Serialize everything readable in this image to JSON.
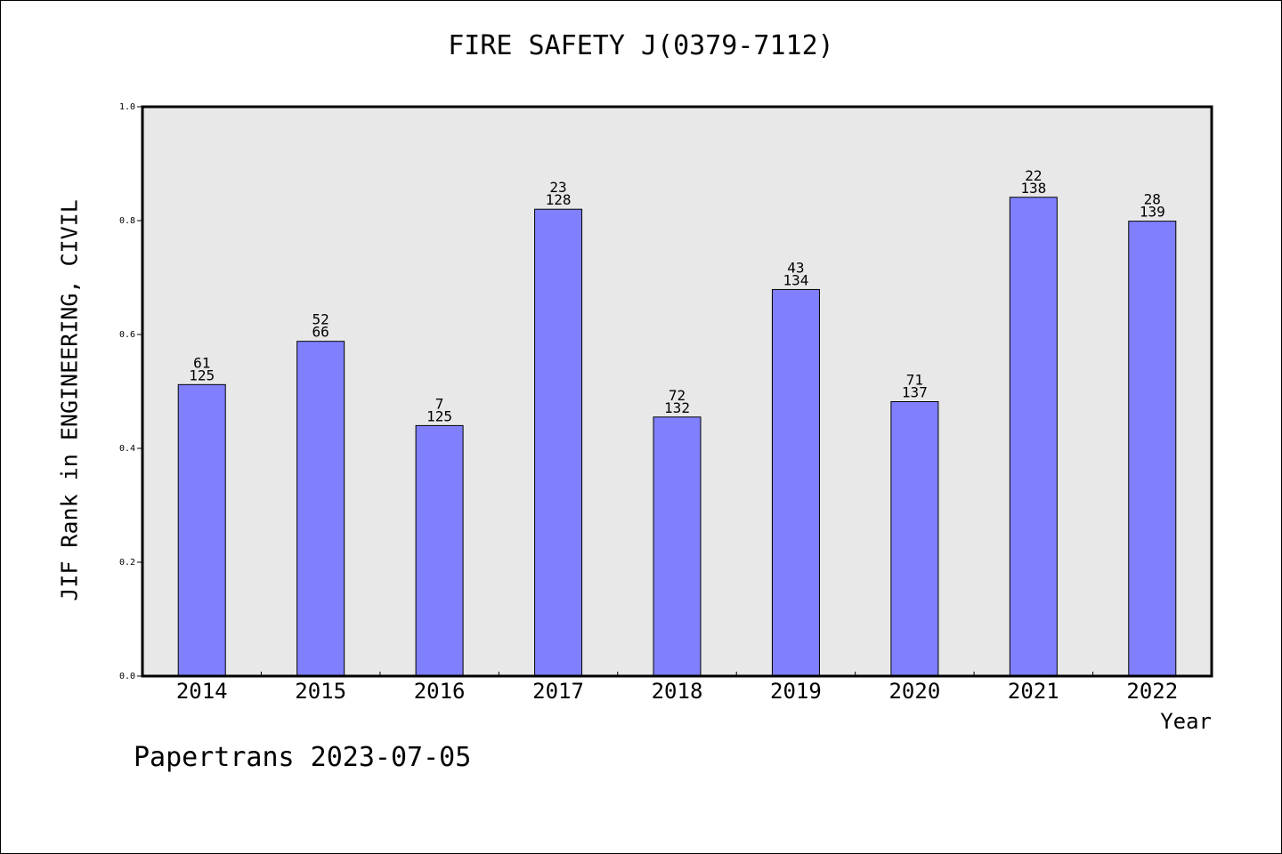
{
  "page": {
    "footer": "Papertrans 2023-07-05"
  },
  "chart_data": {
    "type": "bar",
    "title": "FIRE SAFETY J(0379-7112)",
    "xlabel": "Year",
    "ylabel": "JIF Rank in ENGINEERING, CIVIL",
    "ylim": [
      0.0,
      1.0
    ],
    "yticks": [
      "0.0",
      "0.2",
      "0.4",
      "0.6",
      "0.8",
      "1.0"
    ],
    "categories": [
      "2014",
      "2015",
      "2016",
      "2017",
      "2018",
      "2019",
      "2020",
      "2021",
      "2022"
    ],
    "values": [
      0.512,
      0.588,
      0.44,
      0.82,
      0.455,
      0.679,
      0.482,
      0.841,
      0.799
    ],
    "labels_top": [
      "61",
      "52",
      "7",
      "23",
      "72",
      "43",
      "71",
      "22",
      "28"
    ],
    "labels_bottom": [
      "125",
      "66",
      "125",
      "128",
      "132",
      "134",
      "137",
      "138",
      "139"
    ],
    "grid": false,
    "colors": {
      "bar": "#8080ff",
      "plot_background": "#e8e8e8",
      "axis": "#000000"
    }
  }
}
